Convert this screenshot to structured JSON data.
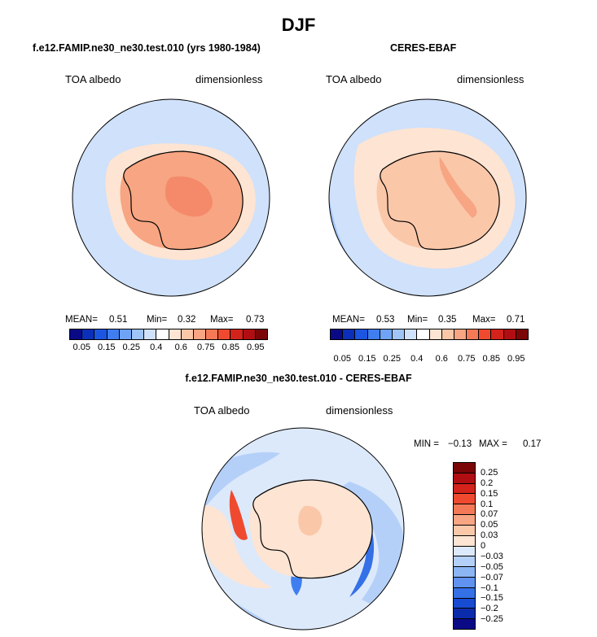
{
  "title": "DJF",
  "panels": [
    {
      "title": "f.e12.FAMIP.ne30_ne30.test.010 (yrs 1980-1984)",
      "left_label": "TOA albedo",
      "right_label": "dimensionless",
      "mean_label": "MEAN=",
      "mean": "0.51",
      "min_label": "Min=",
      "min": "0.32",
      "max_label": "Max=",
      "max": "0.73"
    },
    {
      "title": "CERES-EBAF",
      "left_label": "TOA albedo",
      "right_label": "dimensionless",
      "mean_label": "MEAN=",
      "mean": "0.53",
      "min_label": "Min=",
      "min": "0.35",
      "max_label": "Max=",
      "max": "0.71"
    }
  ],
  "diff": {
    "title": "f.e12.FAMIP.ne30_ne30.test.010 - CERES-EBAF",
    "left_label": "TOA albedo",
    "right_label": "dimensionless",
    "min_label": "MIN =",
    "min": "−0.13",
    "max_label": "MAX =",
    "max": "0.17"
  },
  "colorbar_top": {
    "ticks": [
      "0.05",
      "0.15",
      "0.25",
      "0.4",
      "0.6",
      "0.75",
      "0.85",
      "0.95"
    ],
    "colors": [
      "#0a0a86",
      "#0b2fb8",
      "#1b55e0",
      "#3f7ef0",
      "#6fa3f5",
      "#a0c4f8",
      "#cfe1fb",
      "#ffffff",
      "#fde4d3",
      "#fac7a9",
      "#f7a582",
      "#f47a57",
      "#ef4a2f",
      "#d3231b",
      "#b00e12",
      "#7a0608"
    ]
  },
  "colorbar_diff": {
    "ticks": [
      "0.25",
      "0.2",
      "0.15",
      "0.1",
      "0.07",
      "0.05",
      "0.03",
      "0",
      "−0.03",
      "−0.05",
      "−0.07",
      "−0.1",
      "−0.15",
      "−0.2",
      "−0.25"
    ],
    "colors": [
      "#7a0608",
      "#b00e12",
      "#d3231b",
      "#ef4a2f",
      "#f47a57",
      "#f7a582",
      "#fac7a9",
      "#fde4d3",
      "#dce9fb",
      "#b5d0f8",
      "#8cb5f4",
      "#5f93ef",
      "#3470e6",
      "#174bd2",
      "#0b2caa",
      "#0a0a86"
    ]
  },
  "chart_data": {
    "type": "heatmap",
    "map_projection": "south polar stereographic",
    "variable": "TOA albedo",
    "units": "dimensionless",
    "season": "DJF",
    "model_stats": {
      "mean": 0.51,
      "min": 0.32,
      "max": 0.73
    },
    "obs_stats": {
      "mean": 0.53,
      "min": 0.35,
      "max": 0.71
    },
    "diff_stats": {
      "min": -0.13,
      "max": 0.17
    },
    "levels_abs": [
      0.05,
      0.15,
      0.25,
      0.4,
      0.6,
      0.75,
      0.85,
      0.95
    ],
    "levels_diff": [
      -0.25,
      -0.2,
      -0.15,
      -0.1,
      -0.07,
      -0.05,
      -0.03,
      0,
      0.03,
      0.05,
      0.07,
      0.1,
      0.15,
      0.2,
      0.25
    ]
  }
}
